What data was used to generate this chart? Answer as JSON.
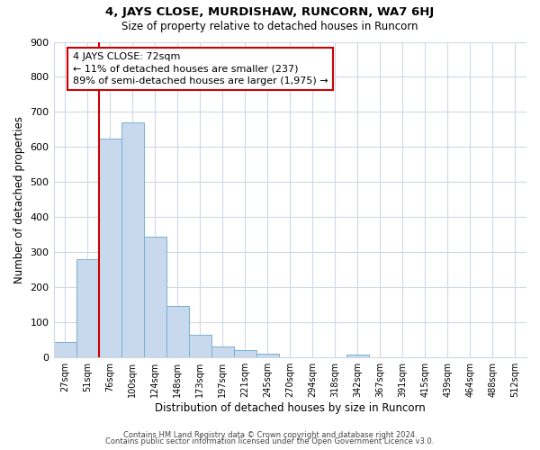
{
  "title": "4, JAYS CLOSE, MURDISHAW, RUNCORN, WA7 6HJ",
  "subtitle": "Size of property relative to detached houses in Runcorn",
  "xlabel": "Distribution of detached houses by size in Runcorn",
  "ylabel": "Number of detached properties",
  "bar_values": [
    45,
    280,
    625,
    670,
    345,
    148,
    65,
    32,
    20,
    12,
    0,
    0,
    0,
    8,
    0,
    0,
    0,
    0,
    0,
    0,
    0
  ],
  "bar_labels": [
    "27sqm",
    "51sqm",
    "76sqm",
    "100sqm",
    "124sqm",
    "148sqm",
    "173sqm",
    "197sqm",
    "221sqm",
    "245sqm",
    "270sqm",
    "294sqm",
    "318sqm",
    "342sqm",
    "367sqm",
    "391sqm",
    "415sqm",
    "439sqm",
    "464sqm",
    "488sqm",
    "512sqm"
  ],
  "bar_color": "#c8d9ee",
  "bar_edge_color": "#7aafd4",
  "vline_color": "#cc0000",
  "annotation_text": "4 JAYS CLOSE: 72sqm\n← 11% of detached houses are smaller (237)\n89% of semi-detached houses are larger (1,975) →",
  "annotation_box_color": "#ffffff",
  "annotation_box_edge": "#cc0000",
  "footer1": "Contains HM Land Registry data © Crown copyright and database right 2024.",
  "footer2": "Contains public sector information licensed under the Open Government Licence v3.0.",
  "ylim": [
    0,
    900
  ],
  "yticks": [
    0,
    100,
    200,
    300,
    400,
    500,
    600,
    700,
    800,
    900
  ],
  "background_color": "#ffffff",
  "grid_color": "#d0d8e4"
}
